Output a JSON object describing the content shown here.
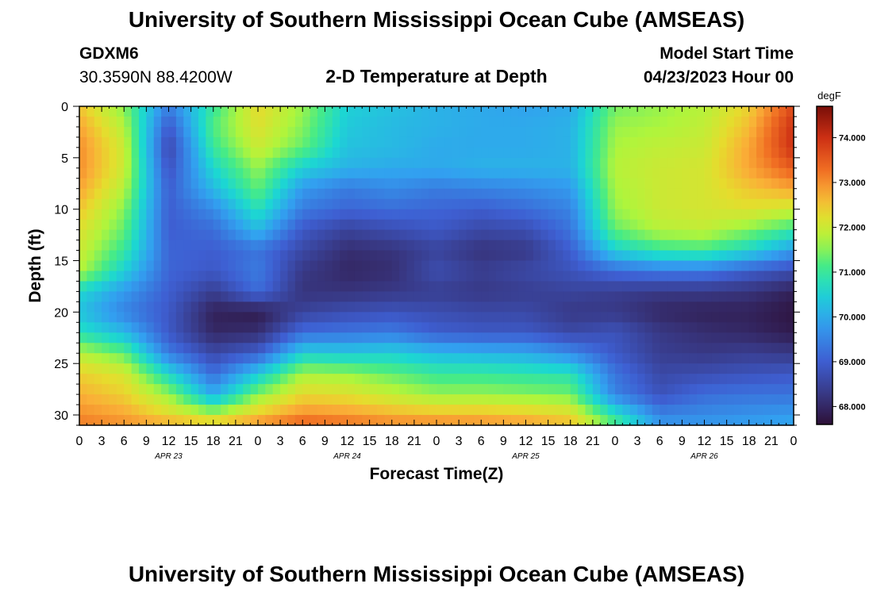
{
  "header": {
    "title": "University of Southern Mississippi Ocean Cube (AMSEAS)",
    "station_id": "GDXM6",
    "station_coords": "30.3590N  88.4200W",
    "plot_title": "2-D Temperature at Depth",
    "model_label": "Model Start Time",
    "model_time": "04/23/2023 Hour 00"
  },
  "footer": {
    "title": "University of Southern Mississippi Ocean Cube (AMSEAS)"
  },
  "chart_data": {
    "type": "heatmap",
    "title": "2-D Temperature at Depth",
    "xlabel": "Forecast Time(Z)",
    "ylabel": "Depth (ft)",
    "units": "degF",
    "x_tick_labels": [
      "0",
      "3",
      "6",
      "9",
      "12",
      "15",
      "18",
      "21",
      "0",
      "3",
      "6",
      "9",
      "12",
      "15",
      "18",
      "21",
      "0",
      "3",
      "6",
      "9",
      "12",
      "15",
      "18",
      "21",
      "0",
      "3",
      "6",
      "9",
      "12",
      "15",
      "18",
      "21",
      "0"
    ],
    "date_labels": [
      "APR 23",
      "APR 24",
      "APR 25",
      "APR 26"
    ],
    "y_ticks": [
      0,
      5,
      10,
      15,
      20,
      25,
      30
    ],
    "ylim": [
      0,
      31
    ],
    "xlim_hours": [
      0,
      96
    ],
    "colorbar": {
      "label": "degF",
      "min": 67.6,
      "max": 74.7,
      "ticks": [
        68.0,
        69.0,
        70.0,
        71.0,
        72.0,
        73.0,
        74.0
      ],
      "tick_labels": [
        "68.000",
        "69.000",
        "70.000",
        "71.000",
        "72.000",
        "73.000",
        "74.000"
      ]
    },
    "depths_ft": [
      0,
      2,
      4,
      6,
      8,
      10,
      12,
      14,
      16,
      18,
      20,
      22,
      24,
      26,
      28,
      30,
      31
    ],
    "times_hours": [
      0,
      6,
      12,
      18,
      24,
      30,
      36,
      42,
      48,
      54,
      60,
      66,
      72,
      78,
      84,
      90,
      96
    ],
    "temperature_degF": [
      [
        72.5,
        71.5,
        69.4,
        71.0,
        72.3,
        71.6,
        70.5,
        70.3,
        70.1,
        70.0,
        69.9,
        70.0,
        71.4,
        71.6,
        71.8,
        72.4,
        73.7
      ],
      [
        72.8,
        71.8,
        68.9,
        71.2,
        72.2,
        71.5,
        70.4,
        70.2,
        70.1,
        70.0,
        70.0,
        70.1,
        71.6,
        71.7,
        71.9,
        72.6,
        74.0
      ],
      [
        73.0,
        72.0,
        68.6,
        71.0,
        72.0,
        71.3,
        70.3,
        70.2,
        70.0,
        70.0,
        70.0,
        70.1,
        71.7,
        71.9,
        72.0,
        72.8,
        74.0
      ],
      [
        73.0,
        72.0,
        68.8,
        70.6,
        71.6,
        70.5,
        70.1,
        70.0,
        70.0,
        70.1,
        70.1,
        70.1,
        71.8,
        72.0,
        72.1,
        72.8,
        73.5
      ],
      [
        72.8,
        71.8,
        69.0,
        70.2,
        71.3,
        69.8,
        69.4,
        69.6,
        69.4,
        69.5,
        69.6,
        69.8,
        71.7,
        72.0,
        72.1,
        72.5,
        72.8
      ],
      [
        72.5,
        71.5,
        69.0,
        69.6,
        70.8,
        69.4,
        69.1,
        69.2,
        69.1,
        69.0,
        69.2,
        69.5,
        71.6,
        72.0,
        72.1,
        72.2,
        72.0
      ],
      [
        72.2,
        71.3,
        69.0,
        69.2,
        70.2,
        68.9,
        68.5,
        68.7,
        68.9,
        68.6,
        68.7,
        69.3,
        71.3,
        71.8,
        71.9,
        71.5,
        71.0
      ],
      [
        72.0,
        71.0,
        69.1,
        69.0,
        69.3,
        68.6,
        68.1,
        68.2,
        68.5,
        68.2,
        68.3,
        69.0,
        70.5,
        71.0,
        71.1,
        70.6,
        69.8
      ],
      [
        71.8,
        70.5,
        69.1,
        68.9,
        69.4,
        68.3,
        68.0,
        68.1,
        68.7,
        68.4,
        68.6,
        68.8,
        69.2,
        69.4,
        69.4,
        69.0,
        68.7
      ],
      [
        70.6,
        69.8,
        69.0,
        68.4,
        69.2,
        68.2,
        68.2,
        68.3,
        68.4,
        68.3,
        68.4,
        68.5,
        68.4,
        68.3,
        68.3,
        68.2,
        67.9
      ],
      [
        70.3,
        69.5,
        68.9,
        67.9,
        67.8,
        68.5,
        68.7,
        68.8,
        68.7,
        68.6,
        68.6,
        68.3,
        68.3,
        68.0,
        67.9,
        67.9,
        67.7
      ],
      [
        70.8,
        70.2,
        68.9,
        68.0,
        68.1,
        69.2,
        69.3,
        69.4,
        69.0,
        68.9,
        68.9,
        68.6,
        68.8,
        68.3,
        68.1,
        68.0,
        67.8
      ],
      [
        71.8,
        71.3,
        69.4,
        68.6,
        69.0,
        70.5,
        70.4,
        70.5,
        70.2,
        70.1,
        70.0,
        69.6,
        68.9,
        68.4,
        68.3,
        68.4,
        68.3
      ],
      [
        72.4,
        72.1,
        70.6,
        69.2,
        70.4,
        71.7,
        71.6,
        71.3,
        71.0,
        71.0,
        70.9,
        70.8,
        69.3,
        68.6,
        68.7,
        68.8,
        68.9
      ],
      [
        72.7,
        72.4,
        71.6,
        70.0,
        71.5,
        72.3,
        72.2,
        71.9,
        71.6,
        71.6,
        71.5,
        71.4,
        69.5,
        68.8,
        69.2,
        69.3,
        69.3
      ],
      [
        73.0,
        72.8,
        72.3,
        71.8,
        72.5,
        73.0,
        72.9,
        72.7,
        72.6,
        72.6,
        72.5,
        72.3,
        70.8,
        69.5,
        69.6,
        69.7,
        69.8
      ],
      [
        73.2,
        73.0,
        72.8,
        72.6,
        73.0,
        73.5,
        73.3,
        73.1,
        73.1,
        73.0,
        72.9,
        72.6,
        71.2,
        69.8,
        69.8,
        69.9,
        70.0
      ]
    ]
  }
}
